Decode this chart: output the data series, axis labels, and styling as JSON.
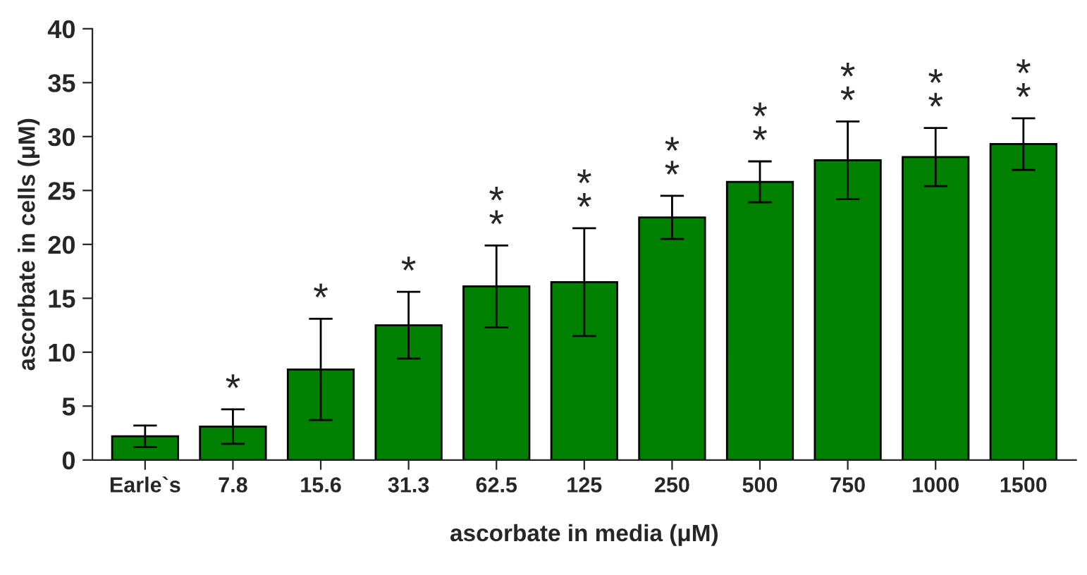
{
  "chart_data": {
    "type": "bar",
    "xlabel": "ascorbate in media (μM)",
    "ylabel": "ascorbate in cells (μM)",
    "categories": [
      "Earle`s",
      "7.8",
      "15.6",
      "31.3",
      "62.5",
      "125",
      "250",
      "500",
      "750",
      "1000",
      "1500"
    ],
    "values": [
      2.2,
      3.1,
      8.4,
      12.5,
      16.1,
      16.5,
      22.5,
      25.8,
      27.8,
      28.1,
      29.3
    ],
    "errors": [
      1.0,
      1.6,
      4.7,
      3.1,
      3.8,
      5.0,
      2.0,
      1.9,
      3.6,
      2.7,
      2.4
    ],
    "color": "#008000",
    "ylim": [
      0,
      40
    ],
    "yticks": [
      0,
      5,
      10,
      15,
      20,
      25,
      30,
      35,
      40
    ],
    "grid": false,
    "legend": false,
    "annotations": [
      {
        "text": "*",
        "x": "7.8",
        "y": 4.7
      },
      {
        "text": "*",
        "x": "15.6",
        "y": 13.1
      },
      {
        "text": "*",
        "x": "31.3",
        "y": 15.6
      },
      {
        "text": "*\n*",
        "x": "62.5",
        "y": 19.9
      },
      {
        "text": "*\n*",
        "x": "125",
        "y": 21.5
      },
      {
        "text": "*\n*",
        "x": "250",
        "y": 24.5
      },
      {
        "text": "*\n*",
        "x": "500",
        "y": 27.7
      },
      {
        "text": "*\n*",
        "x": "750",
        "y": 31.4
      },
      {
        "text": "*\n*",
        "x": "1000",
        "y": 30.8
      },
      {
        "text": "*\n*",
        "x": "1500",
        "y": 31.7
      }
    ]
  }
}
